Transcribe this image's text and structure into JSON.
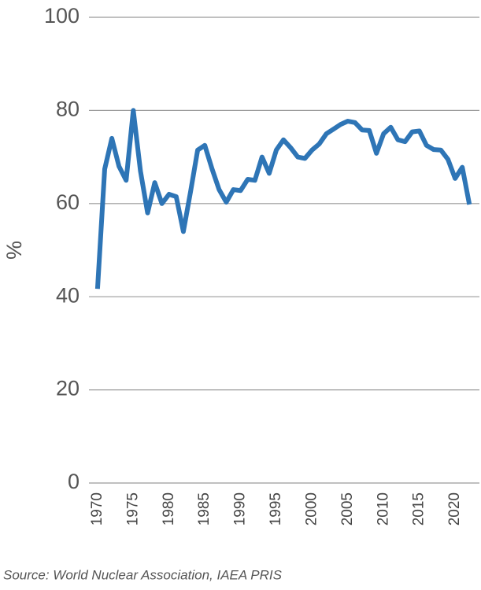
{
  "chart_data": {
    "type": "line",
    "y_label": "%",
    "source": "Source: World Nuclear Association, IAEA PRIS",
    "x": [
      1970,
      1971,
      1972,
      1973,
      1974,
      1975,
      1976,
      1977,
      1978,
      1979,
      1980,
      1981,
      1982,
      1983,
      1984,
      1985,
      1986,
      1987,
      1988,
      1989,
      1990,
      1991,
      1992,
      1993,
      1994,
      1995,
      1996,
      1997,
      1998,
      1999,
      2000,
      2001,
      2002,
      2003,
      2004,
      2005,
      2006,
      2007,
      2008,
      2009,
      2010,
      2011,
      2012,
      2013,
      2014,
      2015,
      2016,
      2017,
      2018,
      2019,
      2020,
      2021,
      2022
    ],
    "values": [
      41.7,
      67.4,
      74,
      68,
      65,
      80,
      67,
      58,
      64.5,
      60,
      62,
      61.5,
      54,
      62.5,
      71.5,
      72.5,
      67.5,
      63,
      60.3,
      63,
      62.8,
      65.2,
      65,
      70,
      66.5,
      71.5,
      73.7,
      72,
      70,
      69.7,
      71.5,
      72.8,
      75,
      76,
      77,
      77.7,
      77.4,
      75.8,
      75.7,
      70.8,
      75,
      76.4,
      73.7,
      73.3,
      75.4,
      75.6,
      72.5,
      71.6,
      71.5,
      69.5,
      65.4,
      67.8,
      59.8
    ],
    "color": "#2e75b6",
    "xlim": [
      1968.8,
      2023.4
    ],
    "xticks": [
      1970,
      1975,
      1980,
      1985,
      1990,
      1995,
      2000,
      2005,
      2010,
      2015,
      2020
    ],
    "ylim": [
      0,
      100
    ],
    "yticks": [
      0,
      20,
      40,
      60,
      80,
      100
    ],
    "grid": true
  }
}
